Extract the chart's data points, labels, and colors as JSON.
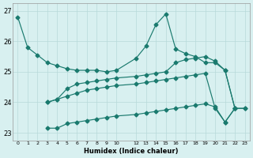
{
  "xlabel": "Humidex (Indice chaleur)",
  "bg_color": "#d8f0f0",
  "line_color": "#1a7a6e",
  "grid_color": "#b8dada",
  "xlim": [
    -0.5,
    23.5
  ],
  "ylim": [
    22.75,
    27.25
  ],
  "yticks": [
    23,
    24,
    25,
    26,
    27
  ],
  "xtick_positions": [
    0,
    1,
    2,
    3,
    4,
    5,
    6,
    7,
    8,
    9,
    10,
    12,
    13,
    14,
    15,
    16,
    17,
    18,
    19,
    20,
    21,
    22,
    23
  ],
  "line1_x": [
    0,
    1,
    2,
    3,
    4,
    5,
    6,
    7,
    8,
    9,
    10,
    12,
    13,
    14,
    15,
    16,
    17,
    18,
    19,
    20,
    21,
    22
  ],
  "line1_y": [
    26.8,
    25.8,
    25.55,
    25.3,
    25.2,
    25.1,
    25.05,
    25.05,
    25.05,
    25.0,
    25.05,
    25.45,
    25.85,
    26.55,
    26.9,
    25.75,
    25.6,
    25.5,
    25.3,
    25.3,
    25.05,
    23.8
  ],
  "line2_x": [
    3,
    4,
    5,
    6,
    7,
    8,
    9,
    10,
    12,
    13,
    14,
    15,
    16,
    17,
    18,
    19,
    20,
    21,
    22
  ],
  "line2_y": [
    24.0,
    24.1,
    24.45,
    24.6,
    24.65,
    24.7,
    24.75,
    24.8,
    24.85,
    24.9,
    24.95,
    25.0,
    25.3,
    25.4,
    25.45,
    25.5,
    25.35,
    25.05,
    23.8
  ],
  "line3_x": [
    3,
    4,
    5,
    6,
    7,
    8,
    9,
    10,
    12,
    13,
    14,
    15,
    16,
    17,
    18,
    19,
    20,
    21,
    22,
    23
  ],
  "line3_y": [
    24.0,
    24.1,
    24.2,
    24.3,
    24.4,
    24.45,
    24.5,
    24.55,
    24.6,
    24.65,
    24.7,
    24.75,
    24.8,
    24.85,
    24.9,
    24.95,
    23.8,
    23.35,
    23.8,
    23.8
  ],
  "line4_x": [
    3,
    4,
    5,
    6,
    7,
    8,
    9,
    10,
    12,
    13,
    14,
    15,
    16,
    17,
    18,
    19,
    20,
    21,
    22,
    23
  ],
  "line4_y": [
    23.15,
    23.15,
    23.3,
    23.35,
    23.4,
    23.45,
    23.5,
    23.55,
    23.6,
    23.65,
    23.7,
    23.75,
    23.8,
    23.85,
    23.9,
    23.95,
    23.85,
    23.35,
    23.8,
    23.8
  ]
}
